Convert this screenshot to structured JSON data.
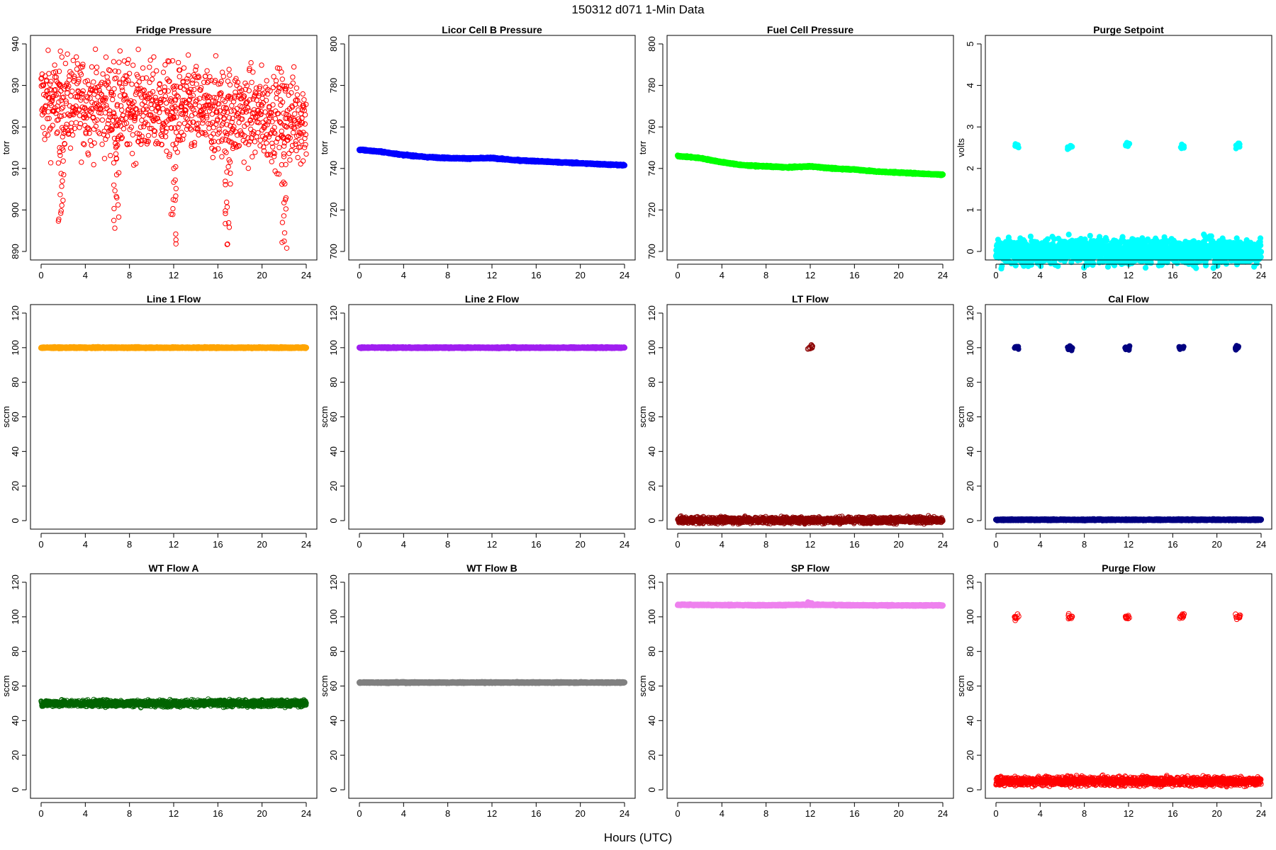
{
  "figure": {
    "title": "150312   d071   1-Min Data",
    "xlabel": "Hours (UTC)"
  },
  "chart_data": [
    {
      "type": "scatter",
      "title": "Fridge Pressure",
      "ylabel": "torr",
      "color": "#ff0000",
      "xlim": [
        0,
        24
      ],
      "ylim": [
        890,
        940
      ],
      "xticks": [
        0,
        4,
        8,
        12,
        16,
        20,
        24
      ],
      "yticks": [
        890,
        900,
        910,
        920,
        930,
        940
      ],
      "pattern": "noise",
      "base": [
        926,
        922
      ],
      "noise": 5.5,
      "marker": "open",
      "dips": [
        [
          1.8,
          897
        ],
        [
          6.8,
          896
        ],
        [
          12.0,
          893
        ],
        [
          16.9,
          891
        ],
        [
          22.0,
          891
        ]
      ]
    },
    {
      "type": "scatter",
      "title": "Licor Cell B Pressure",
      "ylabel": "torr",
      "color": "#0000ff",
      "xlim": [
        0,
        24
      ],
      "ylim": [
        700,
        800
      ],
      "xticks": [
        0,
        4,
        8,
        12,
        16,
        20,
        24
      ],
      "yticks": [
        700,
        720,
        740,
        760,
        780,
        800
      ],
      "pattern": "line",
      "x": [
        0,
        2,
        4,
        6,
        8,
        10,
        12,
        14,
        16,
        18,
        20,
        22,
        24
      ],
      "y": [
        749,
        748,
        746.5,
        745.5,
        745,
        744.8,
        745,
        744,
        743.5,
        743,
        742.5,
        742,
        741.5
      ]
    },
    {
      "type": "scatter",
      "title": "Fuel Cell Pressure",
      "ylabel": "torr",
      "color": "#00ff00",
      "xlim": [
        0,
        24
      ],
      "ylim": [
        700,
        800
      ],
      "xticks": [
        0,
        4,
        8,
        12,
        16,
        20,
        24
      ],
      "yticks": [
        700,
        720,
        740,
        760,
        780,
        800
      ],
      "pattern": "line",
      "x": [
        0,
        2,
        4,
        6,
        8,
        10,
        12,
        14,
        16,
        18,
        20,
        22,
        24
      ],
      "y": [
        746,
        745,
        743,
        741.5,
        741,
        740.5,
        741,
        740,
        739.5,
        738.5,
        738,
        737.5,
        737
      ]
    },
    {
      "type": "scatter",
      "title": "Purge Setpoint",
      "ylabel": "volts",
      "color": "#00ffff",
      "xlim": [
        0,
        24
      ],
      "ylim": [
        0,
        5
      ],
      "xticks": [
        0,
        4,
        8,
        12,
        16,
        20,
        24
      ],
      "yticks": [
        0,
        1,
        2,
        3,
        4,
        5
      ],
      "pattern": "line",
      "x": [
        0,
        24
      ],
      "y": [
        0,
        0
      ],
      "spikes": [
        [
          1.9,
          2.55
        ],
        [
          6.7,
          2.52
        ],
        [
          11.9,
          2.56
        ],
        [
          16.8,
          2.52
        ],
        [
          21.9,
          2.55
        ]
      ]
    },
    {
      "type": "scatter",
      "title": "Line 1 Flow",
      "ylabel": "sccm",
      "color": "#ffa500",
      "xlim": [
        0,
        24
      ],
      "ylim": [
        0,
        120
      ],
      "xticks": [
        0,
        4,
        8,
        12,
        16,
        20,
        24
      ],
      "yticks": [
        0,
        20,
        40,
        60,
        80,
        100,
        120
      ],
      "pattern": "line",
      "x": [
        0,
        24
      ],
      "y": [
        100,
        100
      ]
    },
    {
      "type": "scatter",
      "title": "Line 2 Flow",
      "ylabel": "sccm",
      "color": "#a020f0",
      "xlim": [
        0,
        24
      ],
      "ylim": [
        0,
        120
      ],
      "xticks": [
        0,
        4,
        8,
        12,
        16,
        20,
        24
      ],
      "yticks": [
        0,
        20,
        40,
        60,
        80,
        100,
        120
      ],
      "pattern": "line",
      "x": [
        0,
        24
      ],
      "y": [
        100,
        100
      ]
    },
    {
      "type": "scatter",
      "title": "LT Flow",
      "ylabel": "sccm",
      "color": "#8b0000",
      "xlim": [
        0,
        24
      ],
      "ylim": [
        0,
        120
      ],
      "xticks": [
        0,
        4,
        8,
        12,
        16,
        20,
        24
      ],
      "yticks": [
        0,
        20,
        40,
        60,
        80,
        100,
        120
      ],
      "pattern": "noise",
      "base": [
        0.3,
        0.3
      ],
      "noise": 0.9,
      "marker": "open",
      "spikes": [
        [
          12.0,
          100
        ]
      ]
    },
    {
      "type": "scatter",
      "title": "Cal Flow",
      "ylabel": "sccm",
      "color": "#000080",
      "xlim": [
        0,
        24
      ],
      "ylim": [
        0,
        120
      ],
      "xticks": [
        0,
        4,
        8,
        12,
        16,
        20,
        24
      ],
      "yticks": [
        0,
        20,
        40,
        60,
        80,
        100,
        120
      ],
      "pattern": "line",
      "x": [
        0,
        24
      ],
      "y": [
        0.5,
        0.5
      ],
      "spikes": [
        [
          1.9,
          100
        ],
        [
          6.7,
          100
        ],
        [
          11.9,
          100
        ],
        [
          16.8,
          100
        ],
        [
          21.9,
          100
        ]
      ]
    },
    {
      "type": "scatter",
      "title": "WT Flow A",
      "ylabel": "sccm",
      "color": "#006400",
      "xlim": [
        0,
        24
      ],
      "ylim": [
        0,
        120
      ],
      "xticks": [
        0,
        4,
        8,
        12,
        16,
        20,
        24
      ],
      "yticks": [
        0,
        20,
        40,
        60,
        80,
        100,
        120
      ],
      "pattern": "noise",
      "base": [
        50,
        50
      ],
      "noise": 0.9,
      "marker": "open"
    },
    {
      "type": "scatter",
      "title": "WT Flow B",
      "ylabel": "sccm",
      "color": "#808080",
      "xlim": [
        0,
        24
      ],
      "ylim": [
        0,
        120
      ],
      "xticks": [
        0,
        4,
        8,
        12,
        16,
        20,
        24
      ],
      "yticks": [
        0,
        20,
        40,
        60,
        80,
        100,
        120
      ],
      "pattern": "line",
      "x": [
        0,
        24
      ],
      "y": [
        62,
        62
      ]
    },
    {
      "type": "scatter",
      "title": "SP Flow",
      "ylabel": "sccm",
      "color": "#ee82ee",
      "xlim": [
        0,
        24
      ],
      "ylim": [
        0,
        120
      ],
      "xticks": [
        0,
        4,
        8,
        12,
        16,
        20,
        24
      ],
      "yticks": [
        0,
        20,
        40,
        60,
        80,
        100,
        120
      ],
      "pattern": "line",
      "x": [
        0,
        4,
        8,
        12,
        16,
        20,
        24
      ],
      "y": [
        107,
        106.8,
        106.7,
        107,
        106.7,
        106.6,
        106.6
      ],
      "spikes": [
        [
          12.0,
          108
        ]
      ]
    },
    {
      "type": "scatter",
      "title": "Purge Flow",
      "ylabel": "sccm",
      "color": "#ff0000",
      "xlim": [
        0,
        24
      ],
      "ylim": [
        0,
        120
      ],
      "xticks": [
        0,
        4,
        8,
        12,
        16,
        20,
        24
      ],
      "yticks": [
        0,
        20,
        40,
        60,
        80,
        100,
        120
      ],
      "pattern": "noise",
      "base": [
        5,
        5
      ],
      "noise": 1.3,
      "marker": "open",
      "spikes": [
        [
          1.9,
          100
        ],
        [
          6.7,
          100
        ],
        [
          11.9,
          100
        ],
        [
          16.8,
          100
        ],
        [
          21.9,
          100
        ]
      ]
    }
  ]
}
